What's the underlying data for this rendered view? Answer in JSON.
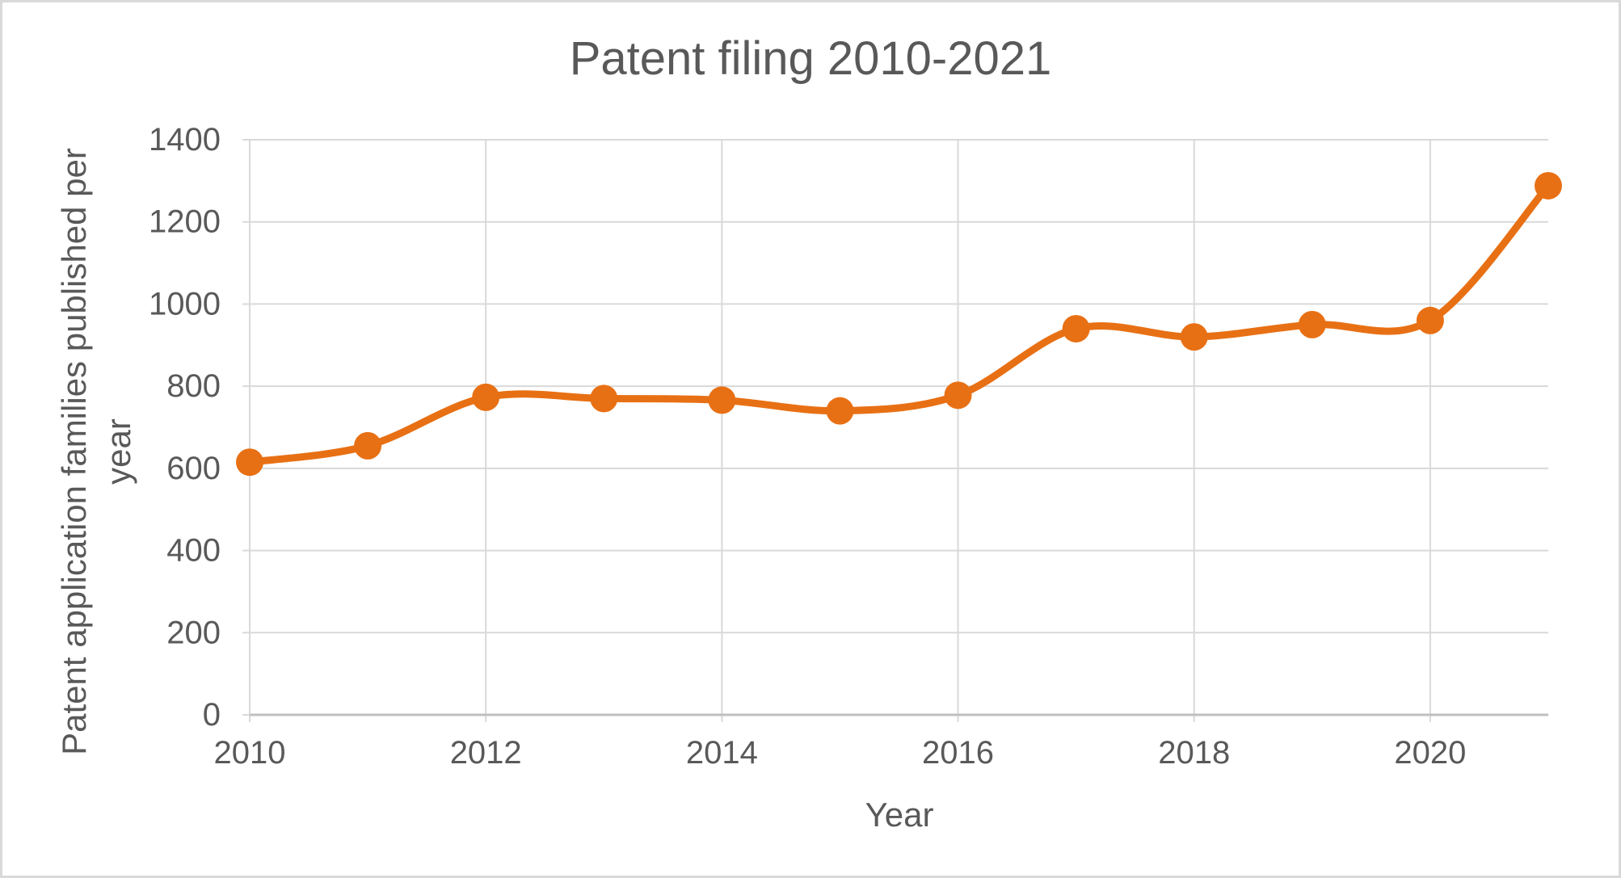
{
  "chart": {
    "title": "Patent filing 2010-2021",
    "x_axis_title": "Year",
    "y_axis_title": "Patent application families published per year",
    "y_axis_title_lines": [
      "Patent application families published per",
      "year"
    ]
  },
  "chart_data": {
    "type": "line",
    "title": "Patent filing 2010-2021",
    "xlabel": "Year",
    "ylabel": "Patent application families published per year",
    "ylabel_lines": [
      "Patent application families published per",
      "year"
    ],
    "categories": [
      2010,
      2011,
      2012,
      2013,
      2014,
      2015,
      2016,
      2017,
      2018,
      2019,
      2020,
      2021
    ],
    "values": [
      615,
      655,
      773,
      770,
      766,
      740,
      778,
      940,
      920,
      950,
      960,
      1288
    ],
    "x_tick_labels": [
      "2010",
      "2012",
      "2014",
      "2016",
      "2018",
      "2020"
    ],
    "x_tick_years": [
      2010,
      2012,
      2014,
      2016,
      2018,
      2020
    ],
    "y_ticks": [
      0,
      200,
      400,
      600,
      800,
      1000,
      1200,
      1400
    ],
    "ylim": [
      0,
      1400
    ],
    "xlim": [
      2010,
      2021
    ],
    "grid": true,
    "legend": "none",
    "smoothed": true,
    "series_name": "Patent application families published per year",
    "line_color": "#e87014",
    "marker_color": "#e87014",
    "gridline_color": "#d9d9d9",
    "axis_line_color": "#bfbfbf",
    "text_color": "#595959"
  }
}
